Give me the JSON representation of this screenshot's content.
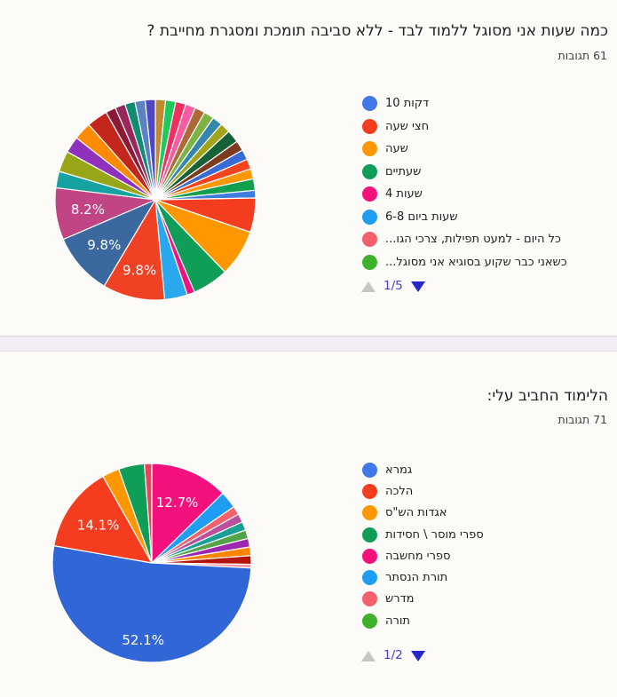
{
  "page": {
    "background": "#fdfbf7",
    "divider_color": "#f4edf4"
  },
  "cards": [
    {
      "title": "כמה שעות אני מסוגל ללמוד לבד - ללא סביבה תומכת ומסגרת מחייבת ?",
      "responses_count": "61 תגובות",
      "legend": [
        {
          "label": "10 דקות",
          "color": "#4178e8"
        },
        {
          "label": "חצי שעה",
          "color": "#f43c1f"
        },
        {
          "label": "שעה",
          "color": "#ff9800"
        },
        {
          "label": "שעתיים",
          "color": "#0f9d58"
        },
        {
          "label": "4 שעות",
          "color": "#f4117e"
        },
        {
          "label": "6-8 שעות ביום",
          "color": "#1e9df2"
        },
        {
          "label": "...כל היום - למעט תפילות, צרכי הגו",
          "color": "#f4606c"
        },
        {
          "label": "...כשאני כבר שקוע בסוגיא אני מסוגל",
          "color": "#3fb02c"
        }
      ],
      "pagination": {
        "page": "1/5",
        "up_arrow": "disabled",
        "down_arrow": "enabled"
      }
    },
    {
      "title": "הלימוד החביב עלי:",
      "responses_count": "71 תגובות",
      "legend": [
        {
          "label": "גמרא",
          "color": "#4178e8"
        },
        {
          "label": "הלכה",
          "color": "#f43c1f"
        },
        {
          "label": "אגדות הש\"ס",
          "color": "#ff9800"
        },
        {
          "label": "ספרי מוסר \\ חסידות",
          "color": "#0f9d58"
        },
        {
          "label": "ספרי מחשבה",
          "color": "#f4117e"
        },
        {
          "label": "תורת הנסתר",
          "color": "#1e9df2"
        },
        {
          "label": "מדרש",
          "color": "#f4606c"
        },
        {
          "label": "תורה",
          "color": "#3fb02c"
        }
      ],
      "pagination": {
        "page": "1/2",
        "up_arrow": "disabled",
        "down_arrow": "enabled"
      }
    }
  ],
  "chart_data": [
    {
      "type": "pie",
      "title": "כמה שעות אני מסוגל ללמוד לבד - ללא סביבה תומכת ומסגרת מחייבת ?",
      "subtitle": "61 תגובות",
      "total_responses": 61,
      "legend_position": "right",
      "legend_page": "1/5",
      "labeled_percentages": [
        9.8,
        9.8,
        8.2
      ],
      "radius": 113,
      "start_angle_deg": 0,
      "direction": "clockwise",
      "slices": [
        {
          "pct": 1.6,
          "color": "#bf8b30"
        },
        {
          "pct": 1.6,
          "color": "#1dc95c"
        },
        {
          "pct": 1.6,
          "color": "#ef2f63"
        },
        {
          "pct": 1.6,
          "color": "#f65c9f"
        },
        {
          "pct": 1.6,
          "color": "#ad6a36"
        },
        {
          "pct": 1.6,
          "color": "#7cb342"
        },
        {
          "pct": 1.6,
          "color": "#3486ad"
        },
        {
          "pct": 1.6,
          "color": "#a2a41c"
        },
        {
          "pct": 2.0,
          "color": "#176136"
        },
        {
          "pct": 1.6,
          "color": "#7d3a1d"
        },
        {
          "pct": 1.6,
          "color": "#3a6ad4"
        },
        {
          "pct": 1.6,
          "color": "#f4431f"
        },
        {
          "pct": 1.6,
          "color": "#ff9800"
        },
        {
          "pct": 1.8,
          "color": "#12a04e"
        },
        {
          "pct": 1.2,
          "color": "#3e7de0"
        },
        {
          "pct": 5.4,
          "color": "#f43c1f"
        },
        {
          "pct": 7.4,
          "color": "#ff9800"
        },
        {
          "pct": 5.7,
          "color": "#0f9d58"
        },
        {
          "pct": 1.2,
          "color": "#f4117e"
        },
        {
          "pct": 3.6,
          "color": "#29a8f0"
        },
        {
          "pct": 9.8,
          "color": "#f04124",
          "label": "9.8%",
          "label_r": 0.72
        },
        {
          "pct": 9.8,
          "color": "#3a689f",
          "label": "9.8%",
          "label_r": 0.68
        },
        {
          "pct": 8.2,
          "color": "#c14484",
          "label": "8.2%",
          "label_r": 0.68
        },
        {
          "pct": 2.6,
          "color": "#17a2a2"
        },
        {
          "pct": 3.3,
          "color": "#97a616"
        },
        {
          "pct": 2.6,
          "color": "#9031bc"
        },
        {
          "pct": 2.8,
          "color": "#ff8b05"
        },
        {
          "pct": 3.3,
          "color": "#c3261a"
        },
        {
          "pct": 1.6,
          "color": "#8c1a36"
        },
        {
          "pct": 1.6,
          "color": "#97275c"
        },
        {
          "pct": 1.6,
          "color": "#108c72"
        },
        {
          "pct": 1.6,
          "color": "#5b82c2"
        },
        {
          "pct": 1.6,
          "color": "#4f46c8"
        }
      ]
    },
    {
      "type": "pie",
      "title": "הלימוד החביב עלי:",
      "subtitle": "71 תגובות",
      "total_responses": 71,
      "legend_position": "right",
      "legend_page": "1/2",
      "labeled_percentages": [
        52.1,
        14.1,
        12.7
      ],
      "radius": 112,
      "start_angle_deg": 0,
      "direction": "clockwise",
      "slices": [
        {
          "pct": 12.7,
          "color": "#f4117e",
          "label": "12.7%",
          "label_r": 0.66,
          "answer": "ספרי מחשבה"
        },
        {
          "pct": 2.8,
          "color": "#1e9df2",
          "answer": "תורת הנסתר"
        },
        {
          "pct": 1.4,
          "color": "#f4606c",
          "answer": "מדרש"
        },
        {
          "pct": 1.4,
          "color": "#bb4f9b"
        },
        {
          "pct": 1.4,
          "color": "#18a096"
        },
        {
          "pct": 1.4,
          "color": "#52a447",
          "answer": "תורה"
        },
        {
          "pct": 1.4,
          "color": "#9c27b0"
        },
        {
          "pct": 1.4,
          "color": "#ff8500"
        },
        {
          "pct": 1.4,
          "color": "#b3150d"
        },
        {
          "pct": 0.6,
          "color": "#f799a8"
        },
        {
          "pct": 52.1,
          "color": "#3166d6",
          "label": "52.1%",
          "label_r": 0.78,
          "answer": "גמרא"
        },
        {
          "pct": 14.1,
          "color": "#f43c1f",
          "label": "14.1%",
          "label_r": 0.66,
          "answer": "הלכה"
        },
        {
          "pct": 2.8,
          "color": "#ff9800",
          "answer": "אגדות הש\"ס"
        },
        {
          "pct": 4.2,
          "color": "#0f9d58",
          "answer": "ספרי מוסר \\ חסידות"
        },
        {
          "pct": 1.2,
          "color": "#e8435c"
        }
      ]
    }
  ]
}
